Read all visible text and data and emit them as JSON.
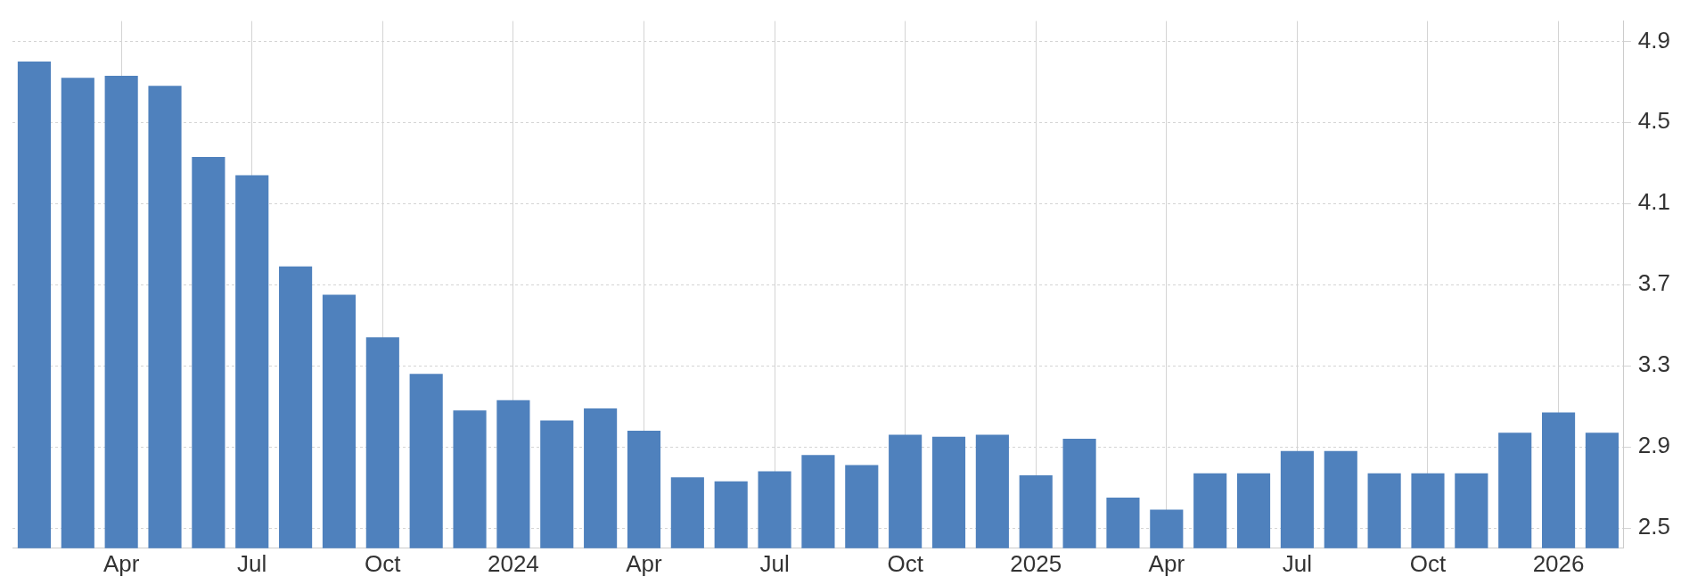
{
  "chart_data": {
    "type": "bar",
    "categories": [
      null,
      null,
      "Apr",
      null,
      null,
      "Jul",
      null,
      null,
      "Oct",
      null,
      null,
      "2024",
      null,
      null,
      "Apr",
      null,
      null,
      "Jul",
      null,
      null,
      "Oct",
      null,
      null,
      "2025",
      null,
      null,
      "Apr",
      null,
      null,
      "Jul",
      null,
      null,
      "Oct",
      null,
      null,
      "2026",
      null
    ],
    "values": [
      4.8,
      4.72,
      4.73,
      4.68,
      4.33,
      4.24,
      3.79,
      3.65,
      3.44,
      3.26,
      3.08,
      3.13,
      3.03,
      3.09,
      2.98,
      2.75,
      2.73,
      2.78,
      2.86,
      2.81,
      2.96,
      2.95,
      2.96,
      2.76,
      2.94,
      2.65,
      2.59,
      2.77,
      2.77,
      2.88,
      2.88,
      2.77,
      2.77,
      2.77,
      2.97,
      3.07,
      2.97
    ],
    "color": "#4f81bd",
    "ylim": [
      2.4,
      5.0
    ],
    "yticks": [
      2.5,
      2.9,
      3.3,
      3.7,
      4.1,
      4.5,
      4.9
    ],
    "grid": true
  }
}
